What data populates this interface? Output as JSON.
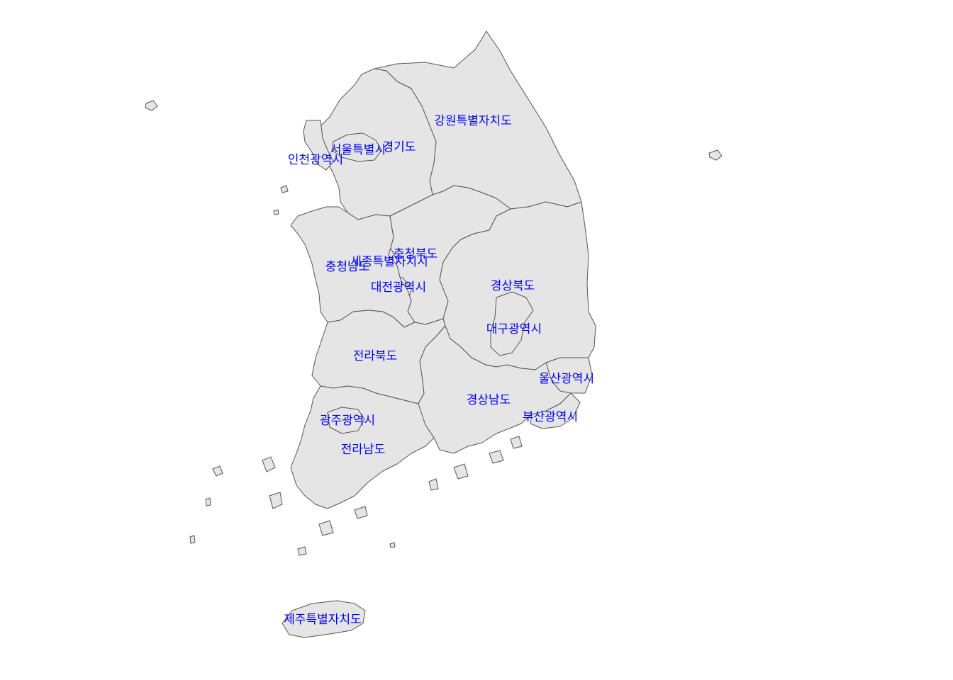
{
  "map": {
    "colors": {
      "land": "#e5e5e5",
      "border": "#555555",
      "label": "#0000ff",
      "background": "#ffffff"
    },
    "regions": [
      {
        "id": "gangwon",
        "label": "강원특별자치도"
      },
      {
        "id": "gyeonggi",
        "label": "경기도"
      },
      {
        "id": "seoul",
        "label": "서울특별시"
      },
      {
        "id": "incheon",
        "label": "인천광역시"
      },
      {
        "id": "chungbuk",
        "label": "충청북도"
      },
      {
        "id": "sejong",
        "label": "세종특별자치시"
      },
      {
        "id": "chungnam",
        "label": "충청남도"
      },
      {
        "id": "daejeon",
        "label": "대전광역시"
      },
      {
        "id": "gyeongbuk",
        "label": "경상북도"
      },
      {
        "id": "daegu",
        "label": "대구광역시"
      },
      {
        "id": "jeonbuk",
        "label": "전라북도"
      },
      {
        "id": "ulsan",
        "label": "울산광역시"
      },
      {
        "id": "gyeongnam",
        "label": "경상남도"
      },
      {
        "id": "busan",
        "label": "부산광역시"
      },
      {
        "id": "gwangju",
        "label": "광주광역시"
      },
      {
        "id": "jeonnam",
        "label": "전라남도"
      },
      {
        "id": "jeju",
        "label": "제주특별자치도"
      }
    ]
  }
}
